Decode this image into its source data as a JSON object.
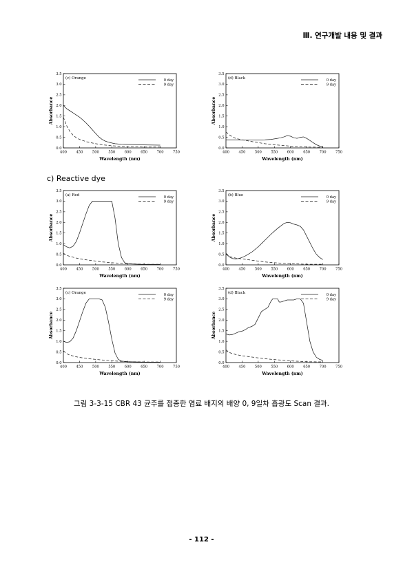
{
  "header": {
    "title": "Ⅲ. 연구개발 내용 및 결과"
  },
  "section": {
    "label": "c) Reactive dye"
  },
  "caption": "그림 3-3-15 CBR 43 균주를 접종한 염료 배지의 배양 0, 9일차 흡광도 Scan 결과.",
  "page_number": "- 112 -",
  "styles": {
    "line_color": "#222222",
    "axis_color": "#000000"
  },
  "chart_data": [
    {
      "type": "line",
      "title": "(c) Orange",
      "xlabel": "Wavelength (nm)",
      "ylabel": "Absorbance",
      "xlim": [
        400,
        750
      ],
      "ylim": [
        0,
        3.5
      ],
      "xticks": [
        400,
        450,
        500,
        550,
        600,
        650,
        700,
        750
      ],
      "yticks": [
        0.0,
        0.5,
        1.0,
        1.5,
        2.0,
        2.5,
        3.0,
        3.5
      ],
      "legend_position": "top-right",
      "series": [
        {
          "name": "0 day",
          "dash": "solid",
          "x": [
            400,
            410,
            420,
            430,
            440,
            450,
            460,
            470,
            480,
            490,
            500,
            510,
            520,
            530,
            540,
            550,
            560,
            580,
            600,
            650,
            700
          ],
          "y": [
            2.0,
            1.85,
            1.75,
            1.65,
            1.55,
            1.45,
            1.32,
            1.18,
            1.02,
            0.85,
            0.68,
            0.52,
            0.4,
            0.32,
            0.27,
            0.23,
            0.2,
            0.17,
            0.16,
            0.14,
            0.13
          ]
        },
        {
          "name": "9 day",
          "dash": "dashed",
          "x": [
            400,
            410,
            420,
            430,
            440,
            450,
            460,
            470,
            480,
            500,
            520,
            550,
            600,
            650,
            700
          ],
          "y": [
            1.45,
            1.05,
            0.78,
            0.6,
            0.48,
            0.4,
            0.35,
            0.3,
            0.26,
            0.2,
            0.15,
            0.1,
            0.06,
            0.04,
            0.04
          ]
        }
      ]
    },
    {
      "type": "line",
      "title": "(d) Black",
      "xlabel": "Wavelength (nm)",
      "ylabel": "Absorbance",
      "xlim": [
        400,
        750
      ],
      "ylim": [
        0,
        3.5
      ],
      "xticks": [
        400,
        450,
        500,
        550,
        600,
        650,
        700,
        750
      ],
      "yticks": [
        0.0,
        0.5,
        1.0,
        1.5,
        2.0,
        2.5,
        3.0,
        3.5
      ],
      "legend_position": "top-right",
      "series": [
        {
          "name": "0 day",
          "dash": "solid",
          "x": [
            400,
            420,
            440,
            460,
            480,
            500,
            520,
            540,
            560,
            570,
            580,
            590,
            600,
            610,
            620,
            630,
            640,
            650,
            660,
            670,
            680,
            690,
            700
          ],
          "y": [
            0.38,
            0.38,
            0.38,
            0.37,
            0.37,
            0.37,
            0.38,
            0.4,
            0.45,
            0.48,
            0.52,
            0.58,
            0.55,
            0.48,
            0.45,
            0.5,
            0.52,
            0.45,
            0.35,
            0.25,
            0.15,
            0.09,
            0.06
          ]
        },
        {
          "name": "9 day",
          "dash": "dashed",
          "x": [
            400,
            410,
            420,
            430,
            450,
            480,
            500,
            520,
            550,
            600,
            650,
            700
          ],
          "y": [
            0.75,
            0.62,
            0.52,
            0.45,
            0.38,
            0.3,
            0.25,
            0.2,
            0.15,
            0.08,
            0.04,
            0.03
          ]
        }
      ]
    },
    {
      "type": "line",
      "title": "(a) Red",
      "xlabel": "Wavelength (nm)",
      "ylabel": "Absorbance",
      "xlim": [
        400,
        750
      ],
      "ylim": [
        0,
        3.5
      ],
      "xticks": [
        400,
        450,
        500,
        550,
        600,
        650,
        700,
        750
      ],
      "yticks": [
        0.0,
        0.5,
        1.0,
        1.5,
        2.0,
        2.5,
        3.0,
        3.5
      ],
      "legend_position": "top-right",
      "series": [
        {
          "name": "0 day",
          "dash": "solid",
          "x": [
            400,
            410,
            420,
            430,
            440,
            450,
            460,
            470,
            480,
            490,
            500,
            510,
            520,
            530,
            540,
            550,
            560,
            570,
            580,
            590,
            600,
            650,
            700
          ],
          "y": [
            0.95,
            0.85,
            0.8,
            0.88,
            1.1,
            1.5,
            1.95,
            2.4,
            2.8,
            3.0,
            3.0,
            3.0,
            3.0,
            3.0,
            3.0,
            3.0,
            2.2,
            1.0,
            0.35,
            0.1,
            0.05,
            0.02,
            0.02
          ]
        },
        {
          "name": "9 day",
          "dash": "dashed",
          "x": [
            400,
            410,
            420,
            440,
            460,
            480,
            500,
            520,
            550,
            600,
            650,
            700
          ],
          "y": [
            0.55,
            0.45,
            0.4,
            0.32,
            0.26,
            0.22,
            0.18,
            0.14,
            0.1,
            0.05,
            0.03,
            0.03
          ]
        }
      ]
    },
    {
      "type": "line",
      "title": "(b) Blue",
      "xlabel": "Wavelength (nm)",
      "ylabel": "Absorbance",
      "xlim": [
        400,
        750
      ],
      "ylim": [
        0,
        3.5
      ],
      "xticks": [
        400,
        450,
        500,
        550,
        600,
        650,
        700,
        750
      ],
      "yticks": [
        0.0,
        0.5,
        1.0,
        1.5,
        2.0,
        2.5,
        3.0,
        3.5
      ],
      "legend_position": "top-right",
      "series": [
        {
          "name": "0 day",
          "dash": "solid",
          "x": [
            400,
            410,
            420,
            430,
            440,
            450,
            460,
            480,
            500,
            520,
            540,
            560,
            580,
            590,
            600,
            610,
            620,
            630,
            640,
            650,
            660,
            670,
            680,
            690,
            700
          ],
          "y": [
            0.55,
            0.38,
            0.3,
            0.28,
            0.3,
            0.35,
            0.42,
            0.6,
            0.85,
            1.15,
            1.45,
            1.72,
            1.95,
            2.0,
            1.98,
            1.92,
            1.88,
            1.82,
            1.65,
            1.35,
            1.05,
            0.75,
            0.5,
            0.35,
            0.25
          ]
        },
        {
          "name": "9 day",
          "dash": "dashed",
          "x": [
            400,
            410,
            420,
            430,
            450,
            480,
            500,
            520,
            550,
            600,
            650,
            700
          ],
          "y": [
            0.5,
            0.4,
            0.35,
            0.32,
            0.28,
            0.22,
            0.18,
            0.14,
            0.1,
            0.05,
            0.03,
            0.03
          ]
        }
      ]
    },
    {
      "type": "line",
      "title": "(c) Orange",
      "xlabel": "Wavelength (nm)",
      "ylabel": "Absorbance",
      "xlim": [
        400,
        750
      ],
      "ylim": [
        0,
        3.5
      ],
      "xticks": [
        400,
        450,
        500,
        550,
        600,
        650,
        700,
        750
      ],
      "yticks": [
        0.0,
        0.5,
        1.0,
        1.5,
        2.0,
        2.5,
        3.0,
        3.5
      ],
      "legend_position": "top-right",
      "series": [
        {
          "name": "0 day",
          "dash": "solid",
          "x": [
            400,
            410,
            420,
            430,
            440,
            450,
            460,
            470,
            480,
            490,
            500,
            510,
            520,
            530,
            540,
            550,
            560,
            570,
            580,
            600,
            650,
            700
          ],
          "y": [
            1.0,
            0.95,
            0.98,
            1.15,
            1.5,
            1.95,
            2.4,
            2.8,
            3.0,
            3.0,
            3.0,
            3.0,
            2.95,
            2.6,
            1.9,
            1.1,
            0.45,
            0.15,
            0.07,
            0.04,
            0.02,
            0.02
          ]
        },
        {
          "name": "9 day",
          "dash": "dashed",
          "x": [
            400,
            410,
            420,
            440,
            460,
            480,
            500,
            520,
            550,
            600,
            650,
            700
          ],
          "y": [
            0.55,
            0.42,
            0.35,
            0.27,
            0.22,
            0.18,
            0.15,
            0.12,
            0.08,
            0.04,
            0.03,
            0.03
          ]
        }
      ]
    },
    {
      "type": "line",
      "title": "(d) Black",
      "xlabel": "Wavelength (nm)",
      "ylabel": "Absorbance",
      "xlim": [
        400,
        750
      ],
      "ylim": [
        0,
        3.5
      ],
      "xticks": [
        400,
        450,
        500,
        550,
        600,
        650,
        700,
        750
      ],
      "yticks": [
        0.0,
        0.5,
        1.0,
        1.5,
        2.0,
        2.5,
        3.0,
        3.5
      ],
      "legend_position": "top-right",
      "series": [
        {
          "name": "0 day",
          "dash": "solid",
          "x": [
            400,
            410,
            420,
            430,
            440,
            450,
            460,
            470,
            480,
            490,
            500,
            510,
            520,
            530,
            540,
            545,
            550,
            560,
            565,
            570,
            580,
            590,
            600,
            610,
            620,
            630,
            640,
            650,
            660,
            670,
            680,
            690,
            700
          ],
          "y": [
            1.35,
            1.3,
            1.32,
            1.38,
            1.45,
            1.48,
            1.55,
            1.65,
            1.7,
            1.8,
            2.1,
            2.4,
            2.5,
            2.6,
            2.9,
            3.0,
            3.0,
            3.0,
            2.85,
            2.85,
            2.9,
            2.95,
            2.95,
            2.95,
            3.0,
            3.0,
            2.8,
            1.9,
            1.0,
            0.5,
            0.25,
            0.15,
            0.1
          ]
        },
        {
          "name": "9 day",
          "dash": "dashed",
          "x": [
            400,
            410,
            420,
            430,
            450,
            480,
            500,
            520,
            550,
            600,
            650,
            700
          ],
          "y": [
            0.6,
            0.48,
            0.42,
            0.38,
            0.32,
            0.26,
            0.22,
            0.18,
            0.14,
            0.08,
            0.04,
            0.03
          ]
        }
      ]
    }
  ]
}
